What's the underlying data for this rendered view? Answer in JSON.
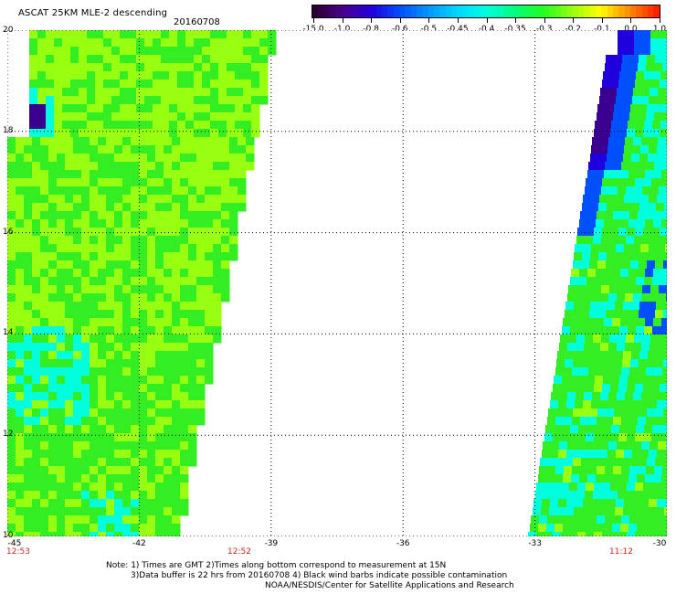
{
  "header": {
    "title": "ASCAT 25KM MLE-2 descending",
    "date": "20160708"
  },
  "colorbar": {
    "labels": [
      "-15.0",
      "-1.0",
      "-0.8",
      "-0.6",
      "-0.5",
      "-0.45",
      "-0.4",
      "-0.35",
      "-0.3",
      "-0.2",
      "-0.1",
      "0.0",
      "1.0"
    ],
    "colors": [
      "#2a0030",
      "#4a0090",
      "#2000e0",
      "#0050ff",
      "#0098ff",
      "#00d8ff",
      "#00ffe0",
      "#00ff80",
      "#20ff20",
      "#90ff10",
      "#ffff00",
      "#ff9000",
      "#ff2000"
    ]
  },
  "map": {
    "lon_range": [
      -45,
      -30
    ],
    "lat_range": [
      10,
      20
    ],
    "x_ticks": [
      "-45",
      "-42",
      "-39",
      "-36",
      "-33",
      "-30"
    ],
    "y_ticks": [
      "10",
      "12",
      "14",
      "16",
      "18",
      "20"
    ],
    "grid": "dotted",
    "swath_colors": {
      "green": "#33ee22",
      "yellow_green": "#99ff11",
      "cyan": "#00ffdd",
      "blue": "#0050ff",
      "dark_blue": "#2000dd",
      "purple": "#3a0090",
      "background": "#ffffff"
    }
  },
  "times": {
    "left": "12:53",
    "middle": "12:52",
    "right": "11:12",
    "color": "#c8281a"
  },
  "notes": {
    "line1": "Note: 1) Times are GMT 2)Times along bottom correspond to measurement at 15N",
    "line2": "3)Data buffer is 22 hrs from 20160708 4) Black wind barbs indicate possible contamination",
    "line3": "NOAA/NESDIS/Center for Satellite Applications and Research"
  }
}
